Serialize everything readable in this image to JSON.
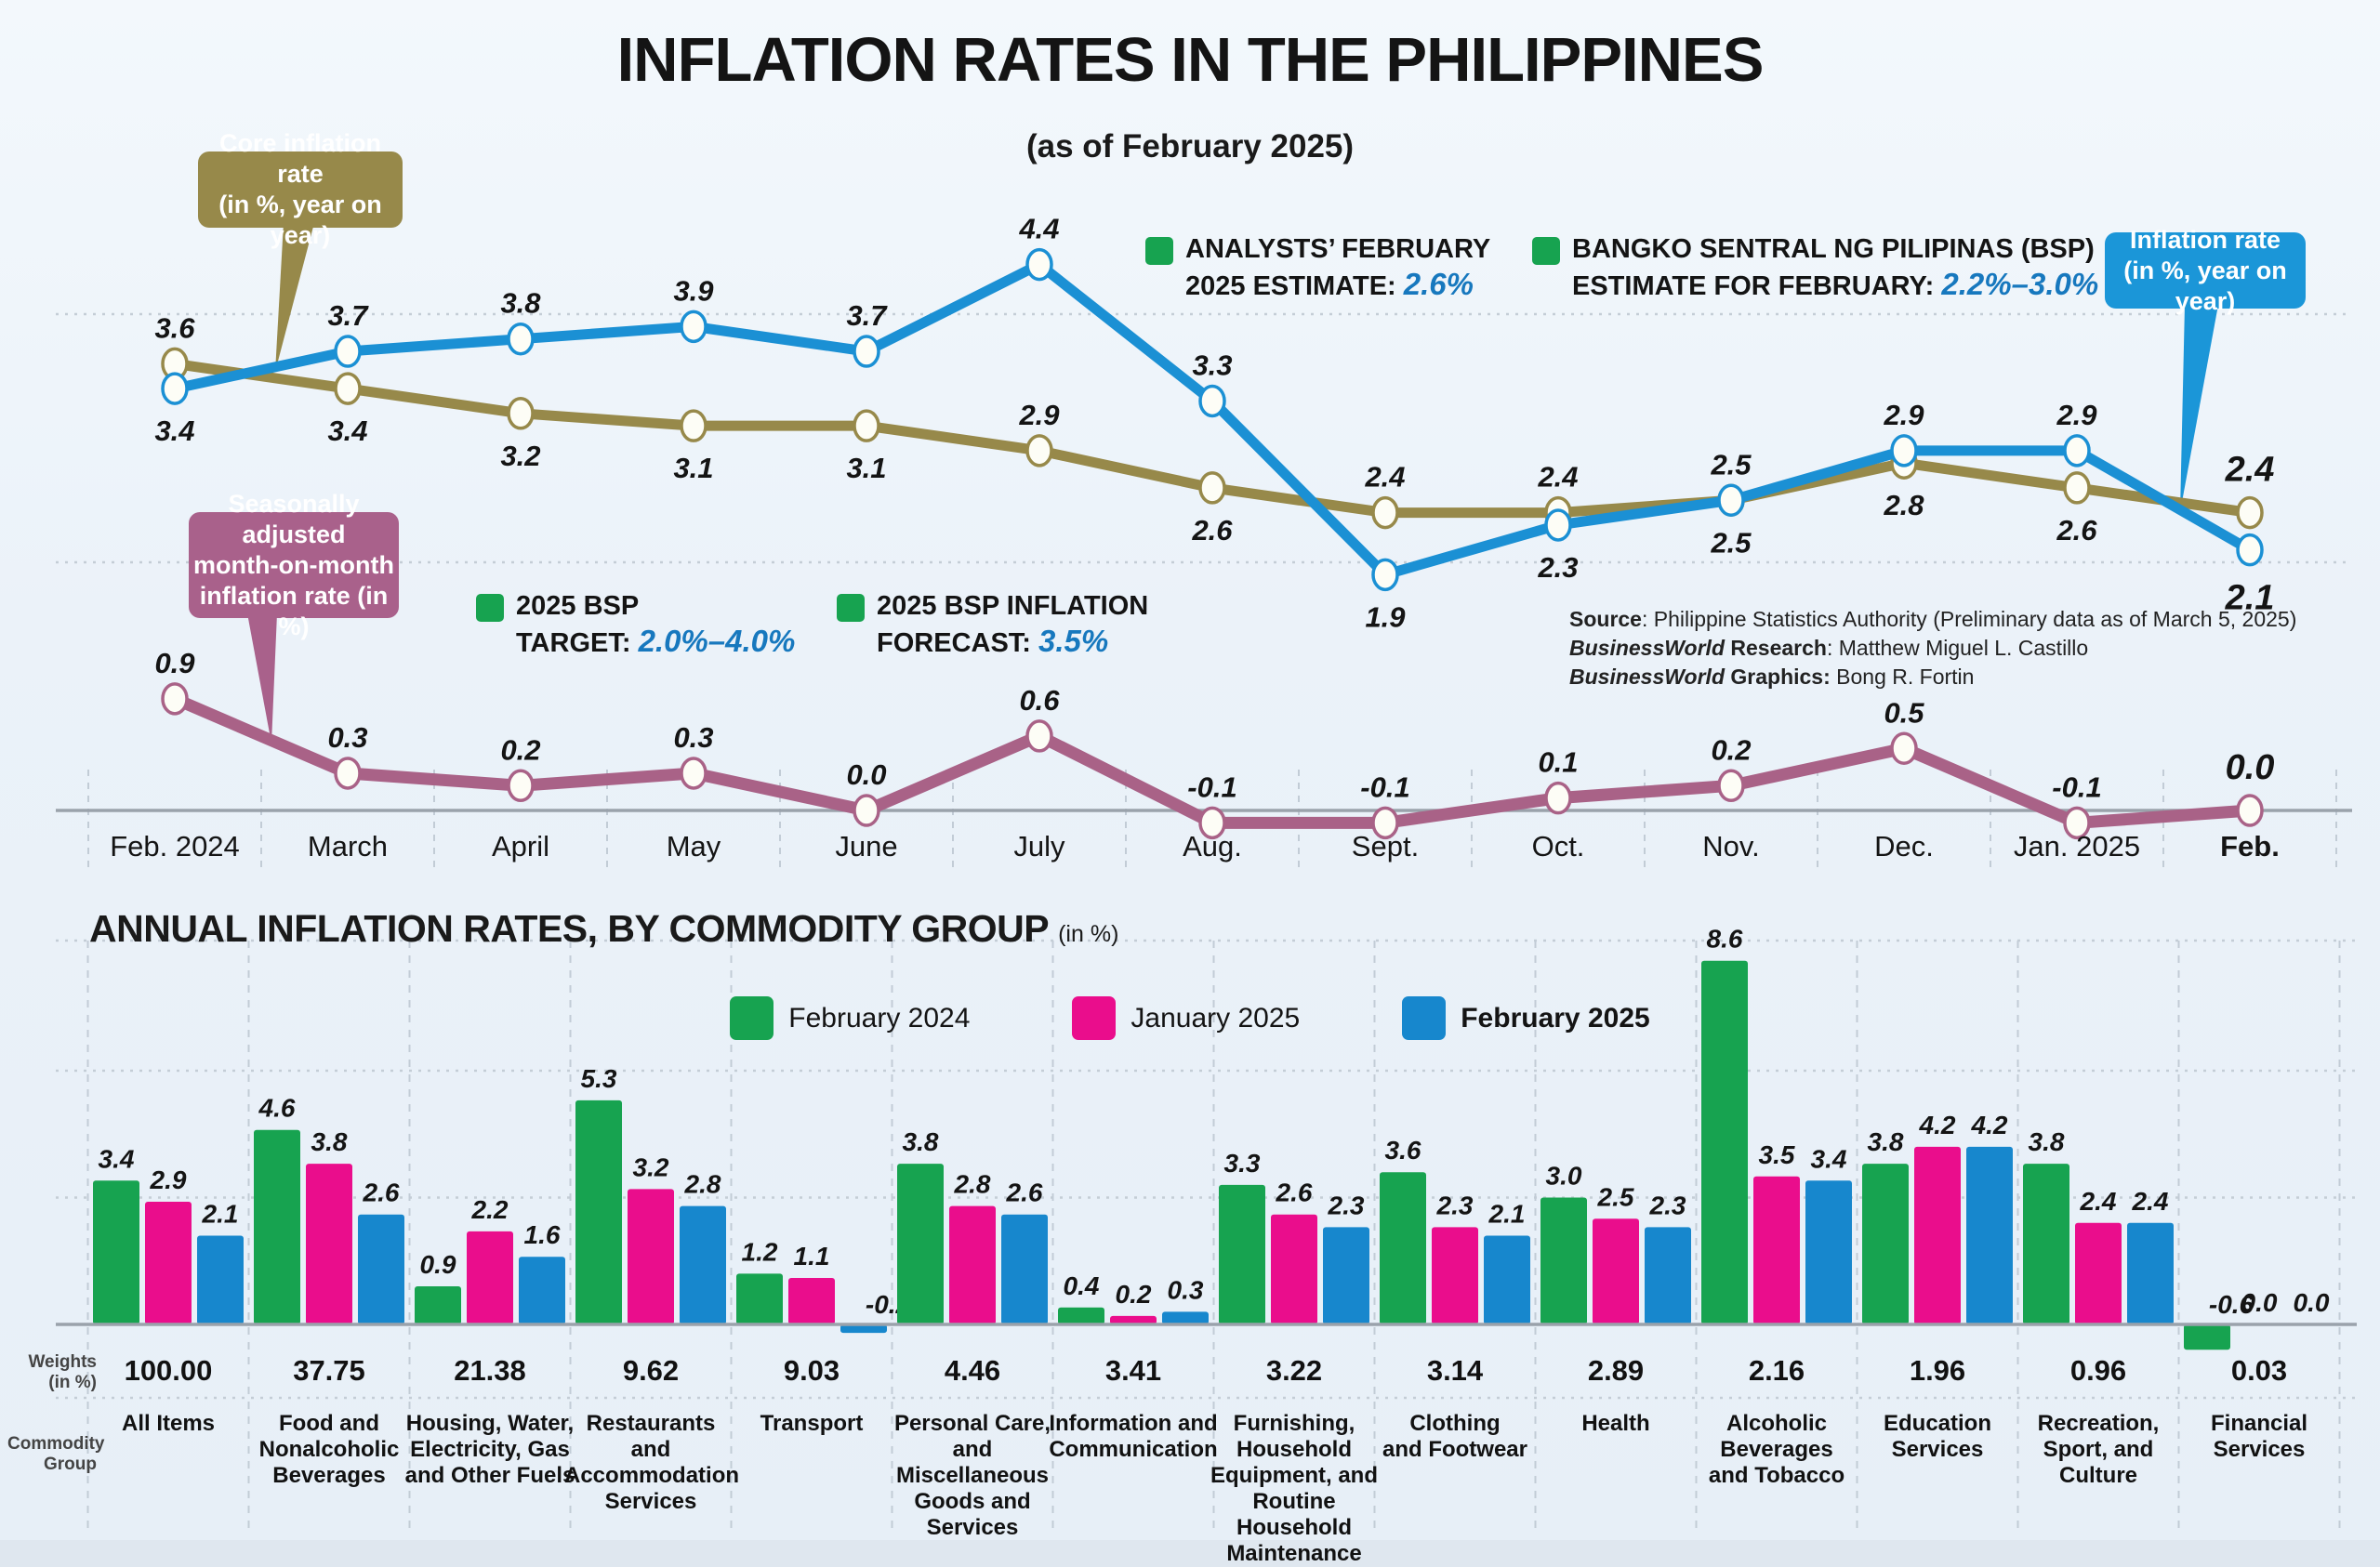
{
  "header": {
    "title": "INFLATION RATES IN THE PHILIPPINES",
    "subtitle": "(as of February 2025)"
  },
  "callouts": {
    "core": {
      "text": "Core inflation rate\n(in %, year on year)",
      "color": "#97894a"
    },
    "headline": {
      "text": "Inflation rate\n(in %, year on year)",
      "color": "#1b96d8"
    },
    "mom": {
      "text": "Seasonally adjusted\nmonth-on-month\ninflation rate (in %)",
      "color": "#a9618b"
    }
  },
  "annotations": {
    "analysts_line1": "ANALYSTS’ FEBRUARY",
    "analysts_line2": "2025 ESTIMATE: ",
    "analysts_value": "2.6%",
    "bsp_line1": "BANGKO SENTRAL NG PILIPINAS (BSP)",
    "bsp_line2": "ESTIMATE FOR FEBRUARY: ",
    "bsp_value": "2.2%–3.0%",
    "target_line1": "2025 BSP",
    "target_line2": "TARGET: ",
    "target_value": "2.0%–4.0%",
    "forecast_line1": "2025 BSP INFLATION",
    "forecast_line2": "FORECAST: ",
    "forecast_value": "3.5%"
  },
  "source": {
    "line1_label": "Source",
    "line1_text": ": Philippine Statistics Authority (Preliminary data as of March 5, 2025)",
    "line2_brand": "BusinessWorld",
    "line2_label": " Research",
    "line2_text": ": Matthew Miguel L. Castillo",
    "line3_brand": "BusinessWorld",
    "line3_label": " Graphics:",
    "line3_text": " Bong R. Fortin"
  },
  "chart_data": [
    {
      "type": "line",
      "x": [
        "Feb. 2024",
        "March",
        "April",
        "May",
        "June",
        "July",
        "Aug.",
        "Sept.",
        "Oct.",
        "Nov.",
        "Dec.",
        "Jan. 2025",
        "Feb."
      ],
      "ylim": [
        -0.5,
        4.8
      ],
      "grid_values": [
        2.0,
        4.0
      ],
      "grid_note": "dotted guides correspond to BSP target band 2.0%-4.0%",
      "series": [
        {
          "name": "Core inflation rate (in %, year on year)",
          "color": "#97894a",
          "values": [
            3.6,
            3.4,
            3.2,
            3.1,
            3.1,
            2.9,
            2.6,
            2.4,
            2.4,
            2.5,
            2.8,
            2.6,
            2.4
          ],
          "label_side": [
            "above",
            "below",
            "below",
            "below",
            "below",
            "above",
            "below",
            "above",
            "above",
            "below",
            "below",
            "below",
            "above"
          ]
        },
        {
          "name": "Inflation rate (in %, year on year)",
          "color": "#1b90d4",
          "values": [
            3.4,
            3.7,
            3.8,
            3.9,
            3.7,
            4.4,
            3.3,
            1.9,
            2.3,
            2.5,
            2.9,
            2.9,
            2.1
          ],
          "label_side": [
            "below",
            "above",
            "above",
            "above",
            "above",
            "above",
            "above",
            "below",
            "below",
            "above",
            "above",
            "above",
            "below"
          ]
        },
        {
          "name": "Seasonally adjusted month-on-month inflation rate (in %)",
          "color": "#a96287",
          "values": [
            0.9,
            0.3,
            0.2,
            0.3,
            0.0,
            0.6,
            -0.1,
            -0.1,
            0.1,
            0.2,
            0.5,
            -0.1,
            0.0
          ],
          "label_side": [
            "above",
            "above",
            "above",
            "above",
            "above",
            "above",
            "above",
            "above",
            "above",
            "above",
            "above",
            "above",
            "above"
          ]
        }
      ]
    },
    {
      "type": "bar",
      "title": "ANNUAL INFLATION RATES, BY COMMODITY GROUP",
      "title_suffix": "(in %)",
      "row_label_weights": "Weights\n(in %)",
      "row_label_commodity": "Commodity\nGroup",
      "legend": [
        "February 2024",
        "January 2025",
        "February 2025"
      ],
      "series_colors": [
        "#17a350",
        "#ea0d8c",
        "#1787cd"
      ],
      "grid_values": [
        3,
        6
      ],
      "ylim": [
        -1,
        9
      ],
      "groups": [
        {
          "label": "All Items",
          "weight": "100.00",
          "values": [
            3.4,
            2.9,
            2.1
          ]
        },
        {
          "label": "Food and\nNonalcoholic\nBeverages",
          "weight": "37.75",
          "values": [
            4.6,
            3.8,
            2.6
          ]
        },
        {
          "label": "Housing, Water,\nElectricity, Gas\nand Other Fuels",
          "weight": "21.38",
          "values": [
            0.9,
            2.2,
            1.6
          ]
        },
        {
          "label": "Restaurants and\nAccommodation\nServices",
          "weight": "9.62",
          "values": [
            5.3,
            3.2,
            2.8
          ]
        },
        {
          "label": "Transport",
          "weight": "9.03",
          "values": [
            1.2,
            1.1,
            -0.2
          ]
        },
        {
          "label": "Personal Care,\nand Miscellaneous\nGoods and\nServices",
          "weight": "4.46",
          "values": [
            3.8,
            2.8,
            2.6
          ]
        },
        {
          "label": "Information and\nCommunication",
          "weight": "3.41",
          "values": [
            0.4,
            0.2,
            0.3
          ]
        },
        {
          "label": "Furnishing,\nHousehold\nEquipment, and\nRoutine Household\nMaintenance",
          "weight": "3.22",
          "values": [
            3.3,
            2.6,
            2.3
          ]
        },
        {
          "label": "Clothing\nand Footwear",
          "weight": "3.14",
          "values": [
            3.6,
            2.3,
            2.1
          ]
        },
        {
          "label": "Health",
          "weight": "2.89",
          "values": [
            3.0,
            2.5,
            2.3
          ]
        },
        {
          "label": "Alcoholic\nBeverages\nand Tobacco",
          "weight": "2.16",
          "values": [
            8.6,
            3.5,
            3.4
          ]
        },
        {
          "label": "Education\nServices",
          "weight": "1.96",
          "values": [
            3.8,
            4.2,
            4.2
          ]
        },
        {
          "label": "Recreation,\nSport, and\nCulture",
          "weight": "0.96",
          "values": [
            3.8,
            2.4,
            2.4
          ]
        },
        {
          "label": "Financial\nServices",
          "weight": "0.03",
          "values": [
            -0.6,
            0.0,
            0.0
          ]
        }
      ]
    }
  ]
}
